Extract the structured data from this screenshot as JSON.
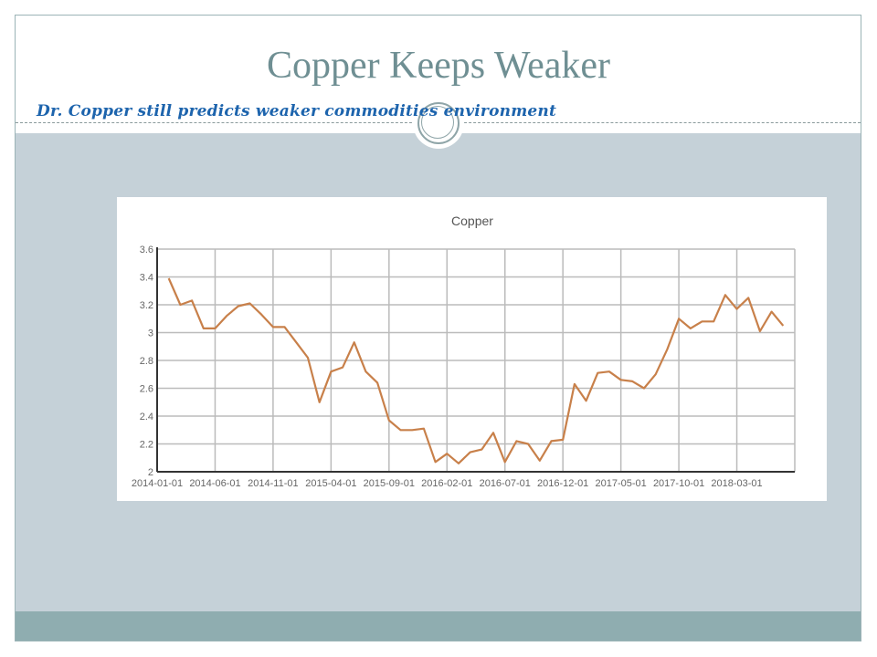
{
  "slide": {
    "title": "Copper Keeps Weaker",
    "subtitle": "Dr. Copper still predicts weaker commodities environment"
  },
  "colors": {
    "line": "#c8804a",
    "body_band": "#c5d1d8",
    "footer_band": "#8fadb0",
    "title": "#6f8f93",
    "subtitle": "#1d64ad"
  },
  "chart_data": {
    "type": "line",
    "title": "Copper",
    "xlabel": "",
    "ylabel": "",
    "ylim": [
      2,
      3.6
    ],
    "yticks": [
      "2",
      "2.2",
      "2.4",
      "2.6",
      "2.8",
      "3",
      "3.2",
      "3.4",
      "3.6"
    ],
    "xticks": [
      "2014-01-01",
      "2014-06-01",
      "2014-11-01",
      "2015-04-01",
      "2015-09-01",
      "2016-02-01",
      "2016-07-01",
      "2016-12-01",
      "2017-05-01",
      "2017-10-01",
      "2018-03-01"
    ],
    "xlim": [
      "2014-01-01",
      "2018-08-01"
    ],
    "grid": true,
    "x": [
      "2014-02-01",
      "2014-03-01",
      "2014-04-01",
      "2014-05-01",
      "2014-06-01",
      "2014-07-01",
      "2014-08-01",
      "2014-09-01",
      "2014-10-01",
      "2014-11-01",
      "2014-12-01",
      "2015-01-01",
      "2015-02-01",
      "2015-03-01",
      "2015-04-01",
      "2015-05-01",
      "2015-06-01",
      "2015-07-01",
      "2015-08-01",
      "2015-09-01",
      "2015-10-01",
      "2015-11-01",
      "2015-12-01",
      "2016-01-01",
      "2016-02-01",
      "2016-03-01",
      "2016-04-01",
      "2016-05-01",
      "2016-06-01",
      "2016-07-01",
      "2016-08-01",
      "2016-09-01",
      "2016-10-01",
      "2016-11-01",
      "2016-12-01",
      "2017-01-01",
      "2017-02-01",
      "2017-03-01",
      "2017-04-01",
      "2017-05-01",
      "2017-06-01",
      "2017-07-01",
      "2017-08-01",
      "2017-09-01",
      "2017-10-01",
      "2017-11-01",
      "2017-12-01",
      "2018-01-01",
      "2018-02-01",
      "2018-03-01",
      "2018-04-01",
      "2018-05-01",
      "2018-06-01",
      "2018-07-01"
    ],
    "values": [
      3.39,
      3.2,
      3.23,
      3.03,
      3.03,
      3.12,
      3.19,
      3.21,
      3.13,
      3.04,
      3.04,
      2.93,
      2.82,
      2.5,
      2.72,
      2.75,
      2.93,
      2.72,
      2.64,
      2.37,
      2.3,
      2.3,
      2.31,
      2.07,
      2.13,
      2.06,
      2.14,
      2.16,
      2.28,
      2.07,
      2.22,
      2.2,
      2.08,
      2.22,
      2.23,
      2.63,
      2.51,
      2.71,
      2.72,
      2.66,
      2.65,
      2.6,
      2.7,
      2.88,
      3.1,
      3.03,
      3.08,
      3.08,
      3.27,
      3.17,
      3.25,
      3.01,
      3.15,
      3.05
    ]
  }
}
